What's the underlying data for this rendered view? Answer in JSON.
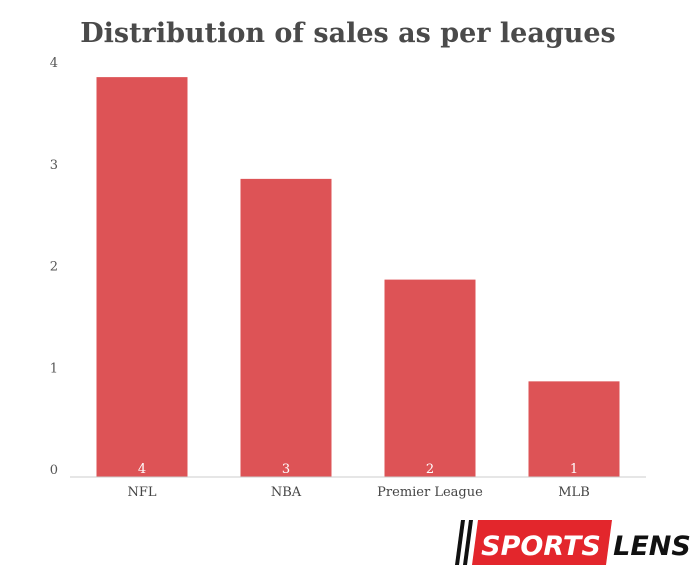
{
  "colors": {
    "bar": "#dd5356",
    "axis": "#cccccc",
    "logo_red": "#e3262c",
    "logo_dark": "#111111"
  },
  "logo": {
    "part1": "SPORTS",
    "part2": "LENS"
  },
  "chart_data": {
    "type": "bar",
    "title": "Distribution of sales as per leagues",
    "xlabel": "",
    "ylabel": "",
    "categories": [
      "NFL",
      "NBA",
      "Premier League",
      "MLB"
    ],
    "values": [
      3.93,
      2.93,
      1.94,
      0.94
    ],
    "data_labels": [
      "4",
      "3",
      "2",
      "1"
    ],
    "yticks": [
      "0",
      "1",
      "2",
      "3",
      "4"
    ],
    "ylim": [
      0,
      4
    ],
    "grid": false,
    "legend": "none"
  }
}
